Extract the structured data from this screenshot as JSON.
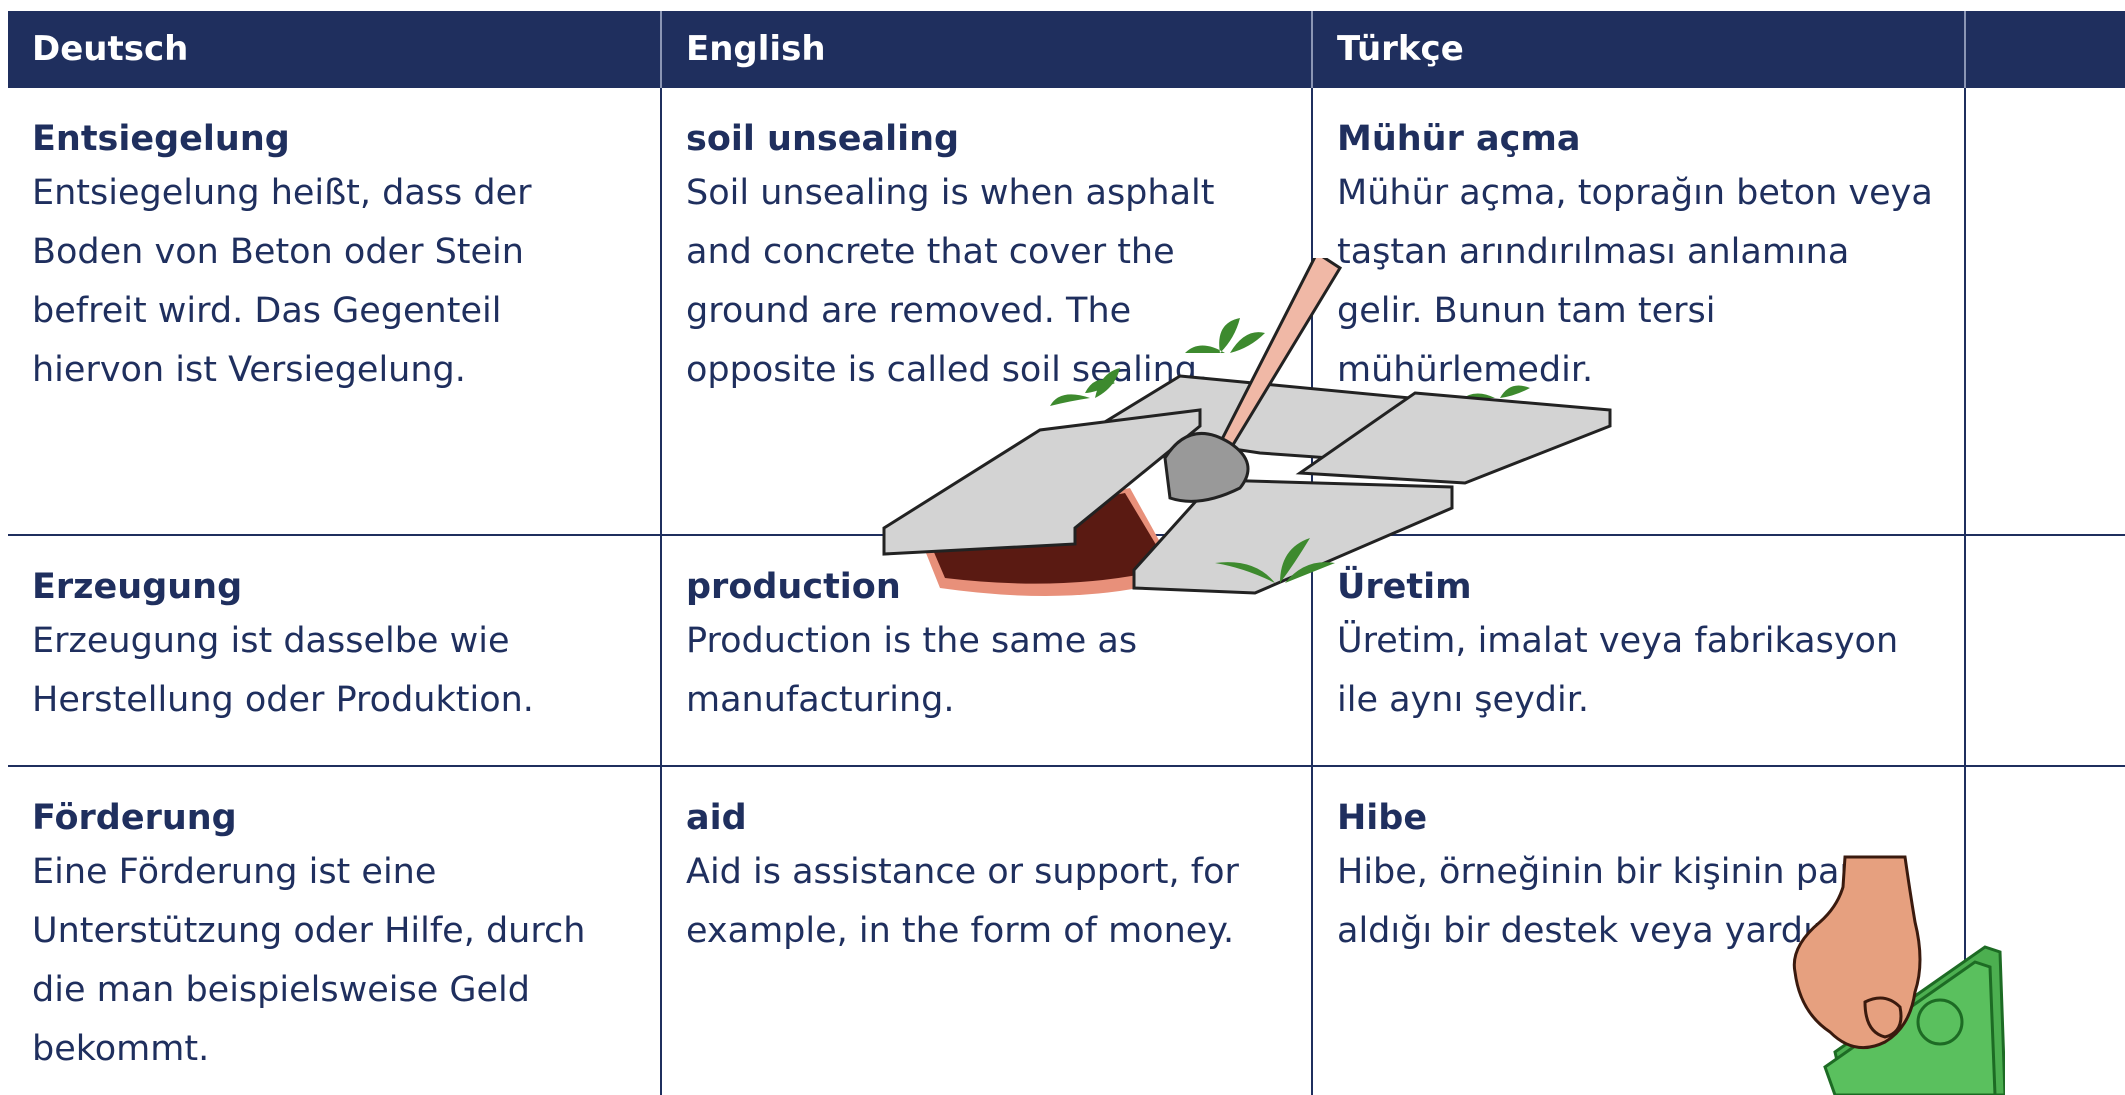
{
  "header": {
    "columns": [
      "Deutsch",
      "English",
      "Türkçe"
    ]
  },
  "table": {
    "rows": [
      [
        {
          "term": "Entsiegelung",
          "definition": "Entsiegelung heißt, dass der Boden von Beton oder Stein befreit wird. Das Gegenteil hiervon ist Versiegelung."
        },
        {
          "term": "soil unsealing",
          "definition": "Soil unsealing is when asphalt and concrete that cover the ground are removed. The opposite is called soil sealing."
        },
        {
          "term": "Mühür açma",
          "definition": "Mühür açma, toprağın beton veya taştan arındırılması anlamına gelir. Bunun tam tersi mühürlemedir."
        }
      ],
      [
        {
          "term": "Erzeugung",
          "definition": "Erzeugung ist dasselbe wie Herstellung oder Produktion."
        },
        {
          "term": "production",
          "definition": "Production is the same as manufacturing."
        },
        {
          "term": "Üretim",
          "definition": "Üretim, imalat veya fabrikasyon ile aynı şeydir."
        }
      ],
      [
        {
          "term": "Förderung",
          "definition": "Eine Förderung ist eine Unterstützung oder Hilfe, durch die man beispielsweise Geld bekommt."
        },
        {
          "term": "aid",
          "definition": "Aid is assistance or support, for example, in the form of money."
        },
        {
          "term": "Hibe",
          "definition": "Hibe, örneğinin bir kişinin para aldığı bir destek veya yardımdır."
        }
      ]
    ]
  }
}
